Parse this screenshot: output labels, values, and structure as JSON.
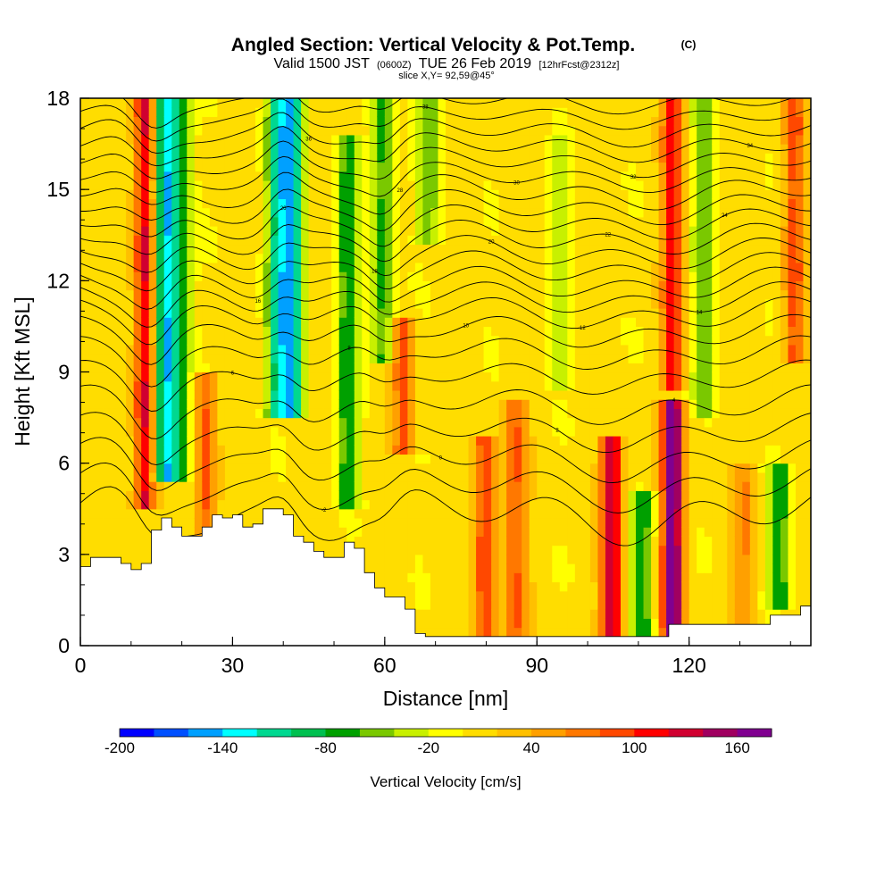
{
  "chart_data": {
    "type": "heatmap",
    "title": "Angled Section: Vertical Velocity & Pot.Temp.",
    "title_unit": "(C)",
    "subtitle": {
      "valid_prefix": "Valid 1500 JST",
      "utc": "(0600Z)",
      "date": "TUE 26 Feb 2019",
      "forecast": "[12hrFcst@2312z]"
    },
    "slice_label": "slice X,Y= 92,59@45°",
    "xlabel": "Distance [nm]",
    "ylabel": "Height [Kft MSL]",
    "xlim": [
      0,
      144
    ],
    "ylim": [
      0,
      18
    ],
    "x_ticks": [
      "0",
      "30",
      "60",
      "90",
      "120"
    ],
    "y_ticks": [
      "0",
      "3",
      "6",
      "9",
      "12",
      "15",
      "18"
    ],
    "colorbar": {
      "label": "Vertical Velocity [cm/s]",
      "tick_labels": [
        "-200",
        "-140",
        "-80",
        "-20",
        "40",
        "100",
        "160"
      ],
      "levels": [
        -200,
        -180,
        -160,
        -140,
        -120,
        -100,
        -80,
        -60,
        -40,
        -20,
        0,
        20,
        40,
        60,
        80,
        100,
        120,
        140,
        160
      ],
      "colors": [
        "#0000ff",
        "#0050ff",
        "#00a0ff",
        "#00ffff",
        "#00d890",
        "#00c050",
        "#00a000",
        "#7ac800",
        "#c8f000",
        "#ffff00",
        "#ffdd00",
        "#ffc000",
        "#ffa000",
        "#ff7800",
        "#ff4800",
        "#ff0000",
        "#d00030",
        "#a00060",
        "#800090"
      ]
    },
    "columns_x": [
      0,
      2,
      4,
      6,
      8,
      10,
      12,
      14,
      16,
      18,
      20,
      22,
      24,
      26,
      28,
      30,
      32,
      34,
      36,
      38,
      40,
      42,
      44,
      46,
      48,
      50,
      52,
      54,
      56,
      58,
      60,
      62,
      64,
      66,
      68,
      70,
      72,
      74,
      76,
      78,
      80,
      82,
      84,
      86,
      88,
      90,
      92,
      94,
      96,
      98,
      100,
      102,
      104,
      106,
      108,
      110,
      112,
      114,
      116,
      118,
      120,
      122,
      124,
      126,
      128,
      130,
      132,
      134,
      136,
      138,
      140,
      142,
      144
    ],
    "velocity_cores": [
      {
        "x": 12,
        "top": 18,
        "bottom": 5,
        "value": 120
      },
      {
        "x": 16,
        "top": 18,
        "bottom": 6,
        "value": -140
      },
      {
        "x": 19,
        "top": 18,
        "bottom": 6,
        "value": -80
      },
      {
        "x": 24,
        "top": 8,
        "bottom": 4,
        "value": 80
      },
      {
        "x": 41,
        "top": 18,
        "bottom": 8,
        "value": -140
      },
      {
        "x": 38,
        "top": 18,
        "bottom": 8,
        "value": -100
      },
      {
        "x": 52,
        "top": 16,
        "bottom": 5,
        "value": -80
      },
      {
        "x": 59,
        "top": 18,
        "bottom": 10,
        "value": -80
      },
      {
        "x": 63,
        "top": 10,
        "bottom": 7,
        "value": 80
      },
      {
        "x": 68,
        "top": 18,
        "bottom": 14,
        "value": -60
      },
      {
        "x": 79,
        "top": 6,
        "bottom": 0.3,
        "value": 90
      },
      {
        "x": 85,
        "top": 7,
        "bottom": 0.3,
        "value": 70
      },
      {
        "x": 94,
        "top": 16,
        "bottom": 9,
        "value": -40
      },
      {
        "x": 104,
        "top": 6,
        "bottom": 1,
        "value": 120
      },
      {
        "x": 110,
        "top": 4,
        "bottom": 1,
        "value": -80
      },
      {
        "x": 116,
        "top": 18,
        "bottom": 9,
        "value": 100
      },
      {
        "x": 116,
        "top": 7,
        "bottom": 1,
        "value": 160
      },
      {
        "x": 122,
        "top": 18,
        "bottom": 8,
        "value": -60
      },
      {
        "x": 130,
        "top": 5,
        "bottom": 1,
        "value": 50
      },
      {
        "x": 137,
        "top": 5,
        "bottom": 2,
        "value": -80
      },
      {
        "x": 140,
        "top": 18,
        "bottom": 10,
        "value": 80
      }
    ],
    "terrain": {
      "x": [
        0,
        2,
        4,
        6,
        8,
        10,
        12,
        14,
        16,
        18,
        20,
        22,
        24,
        26,
        28,
        30,
        32,
        34,
        36,
        38,
        40,
        42,
        44,
        46,
        48,
        50,
        52,
        54,
        56,
        58,
        60,
        62,
        64,
        66,
        68,
        70,
        72,
        74,
        76,
        78,
        80,
        82,
        84,
        86,
        88,
        90,
        92,
        94,
        96,
        98,
        100,
        102,
        104,
        106,
        108,
        110,
        112,
        114,
        116,
        118,
        120,
        122,
        124,
        126,
        128,
        130,
        132,
        134,
        136,
        138,
        140,
        142,
        144
      ],
      "height": [
        2.6,
        2.9,
        2.9,
        2.9,
        2.7,
        2.5,
        2.7,
        3.8,
        4.2,
        3.9,
        3.6,
        3.6,
        3.9,
        4.3,
        4.2,
        4.3,
        3.9,
        4.0,
        4.5,
        4.5,
        4.3,
        3.6,
        3.4,
        3.1,
        2.9,
        2.9,
        3.4,
        3.2,
        2.4,
        1.9,
        1.6,
        1.6,
        1.2,
        0.4,
        0.3,
        0.3,
        0.3,
        0.3,
        0.3,
        0.3,
        0.3,
        0.3,
        0.3,
        0.3,
        0.3,
        0.3,
        0.3,
        0.3,
        0.3,
        0.3,
        0.3,
        0.3,
        0.3,
        0.3,
        0.3,
        0.3,
        0.3,
        0.3,
        0.7,
        0.7,
        0.7,
        0.7,
        0.7,
        0.7,
        0.7,
        0.7,
        0.7,
        0.7,
        1.0,
        1.0,
        1.0,
        1.3,
        1.3
      ]
    },
    "theta_contours": [
      {
        "label": "-4",
        "base": 4.3,
        "amp": 1.2
      },
      {
        "label": "-2",
        "base": 5.2,
        "amp": 1.0
      },
      {
        "label": "0",
        "base": 6.1,
        "amp": 0.9
      },
      {
        "label": "2",
        "base": 7.0,
        "amp": 0.8
      },
      {
        "label": "4",
        "base": 7.9,
        "amp": 0.8
      },
      {
        "label": "6",
        "base": 8.8,
        "amp": 0.7
      },
      {
        "label": "8",
        "base": 9.6,
        "amp": 0.7
      },
      {
        "label": "10",
        "base": 10.3,
        "amp": 0.7
      },
      {
        "label": "12",
        "base": 10.9,
        "amp": 0.7
      },
      {
        "label": "14",
        "base": 11.4,
        "amp": 0.7
      },
      {
        "label": "16",
        "base": 11.9,
        "amp": 0.7
      },
      {
        "label": "18",
        "base": 12.4,
        "amp": 0.7
      },
      {
        "label": "20",
        "base": 12.9,
        "amp": 0.7
      },
      {
        "label": "22",
        "base": 13.4,
        "amp": 0.7
      },
      {
        "label": "24",
        "base": 13.9,
        "amp": 0.7
      },
      {
        "label": "26",
        "base": 14.4,
        "amp": 0.7
      },
      {
        "label": "28",
        "base": 14.9,
        "amp": 0.7
      },
      {
        "label": "30",
        "base": 15.4,
        "amp": 0.6
      },
      {
        "label": "32",
        "base": 15.9,
        "amp": 0.6
      },
      {
        "label": "34",
        "base": 16.4,
        "amp": 0.6
      },
      {
        "label": "36",
        "base": 16.9,
        "amp": 0.6
      },
      {
        "label": "38",
        "base": 17.4,
        "amp": 0.5
      },
      {
        "label": "40",
        "base": 17.9,
        "amp": 0.5
      }
    ]
  }
}
